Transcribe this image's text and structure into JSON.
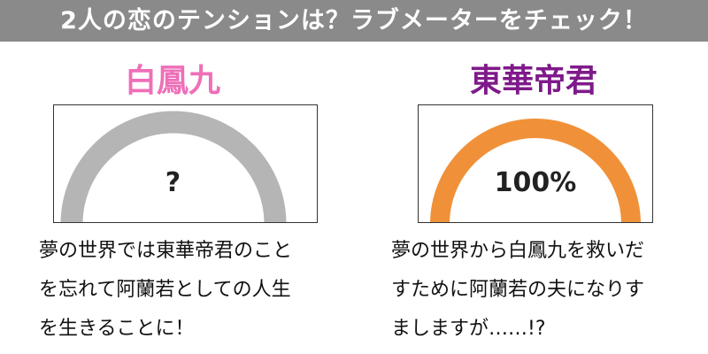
{
  "header": {
    "title": "2人の恋のテンションは？ラブメーターをチェック！"
  },
  "characters": [
    {
      "name": "白鳳九",
      "name_color": "#ee6fb8",
      "meter_value": "?",
      "meter_level": null,
      "meter_color": "#b5b5b5",
      "lines": [
        "夢の世界では東華帝君のこと",
        "を忘れて阿蘭若としての人生",
        "を生きることに！"
      ]
    },
    {
      "name": "東華帝君",
      "name_color": "#7f1a8a",
      "meter_value": "100%",
      "meter_level": 100,
      "meter_color": "#f0913a",
      "lines": [
        "夢の世界から白鳳九を救いだ",
        "すために阿蘭若の夫になりす",
        "ましますが……!?"
      ]
    }
  ]
}
